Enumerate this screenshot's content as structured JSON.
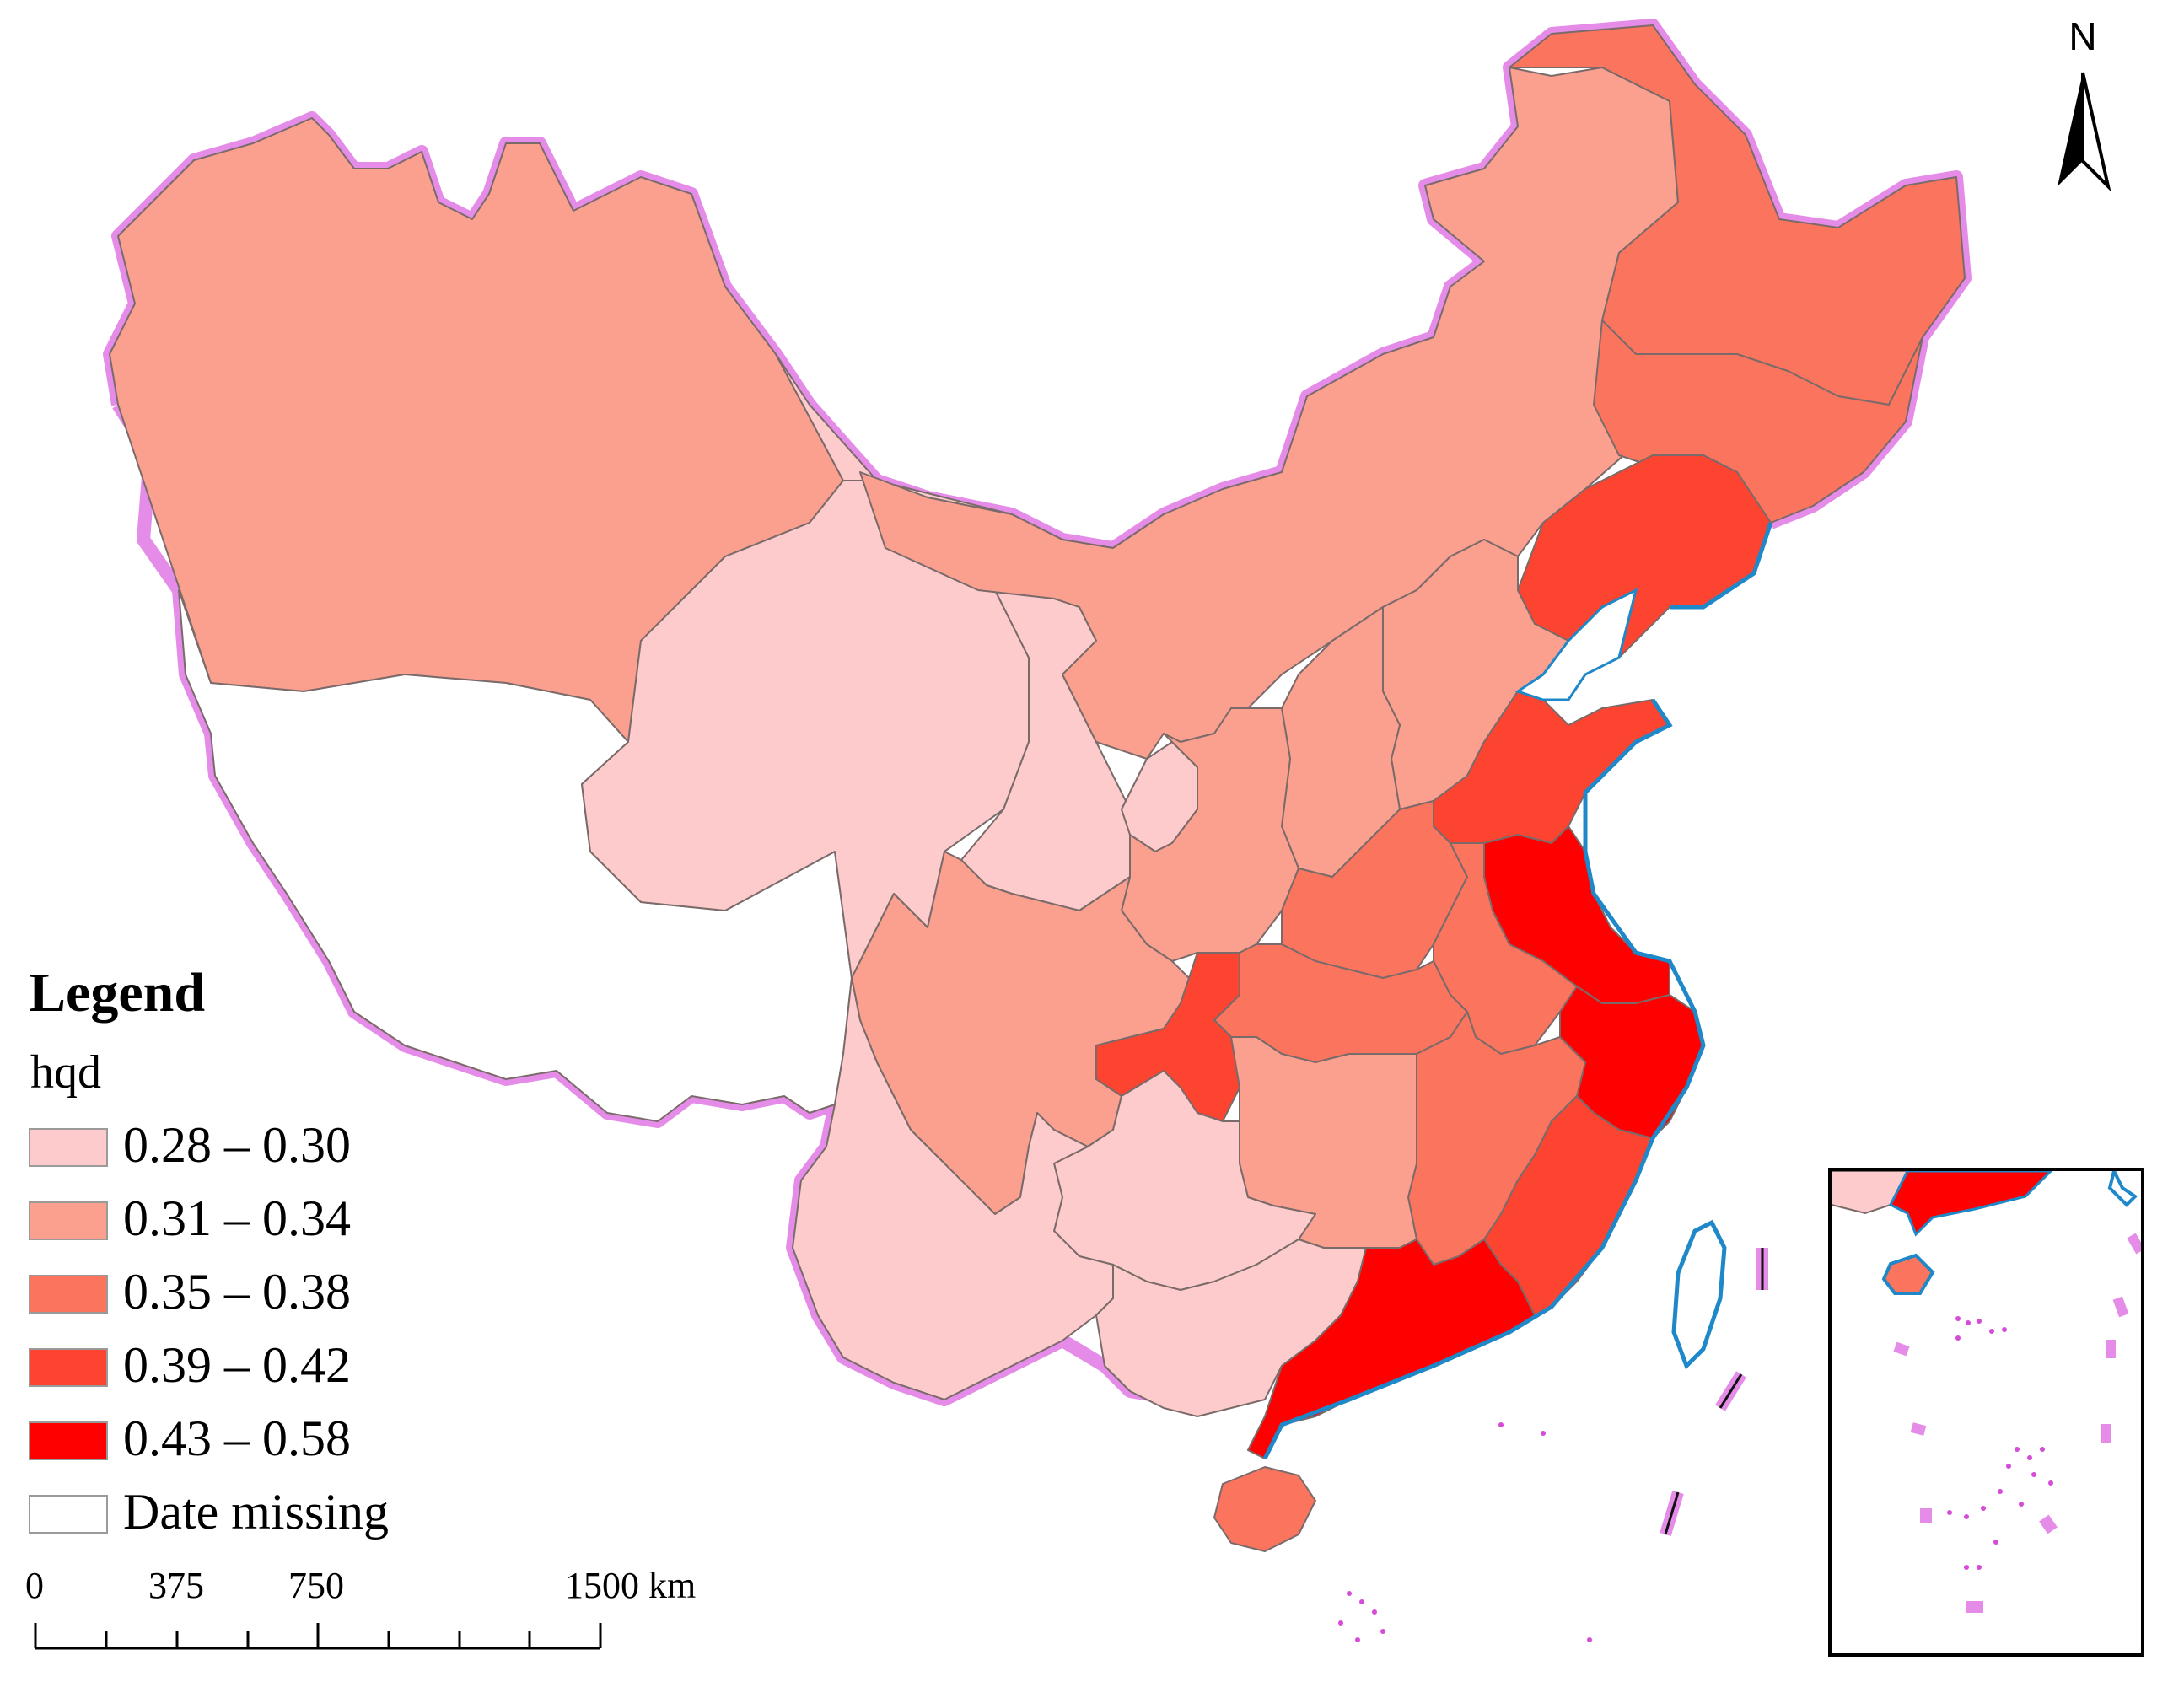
{
  "map": {
    "legend": {
      "title": "Legend",
      "field": "hqd",
      "classes": [
        {
          "label": "0.28 – 0.30",
          "color": "#FDCBCB"
        },
        {
          "label": "0.31 – 0.34",
          "color": "#FBA08F"
        },
        {
          "label": "0.35 – 0.38",
          "color": "#FB745E"
        },
        {
          "label": "0.39 – 0.42",
          "color": "#FC4430"
        },
        {
          "label": "0.43 – 0.58",
          "color": "#FE0000"
        },
        {
          "label": "Date missing",
          "color": "#FFFFFF"
        }
      ]
    },
    "scale_bar": {
      "ticks": [
        "0",
        "375",
        "750",
        "1500 km"
      ]
    },
    "north_arrow": {
      "letter": "N",
      "icon": "north-arrow-icon"
    },
    "regions": [
      {
        "id": "xinjiang",
        "class_index": 1
      },
      {
        "id": "tibet",
        "class_index": 5
      },
      {
        "id": "qinghai",
        "class_index": 0
      },
      {
        "id": "gansu",
        "class_index": 0
      },
      {
        "id": "ningxia",
        "class_index": 0
      },
      {
        "id": "inner-mongolia",
        "class_index": 1
      },
      {
        "id": "heilongjiang",
        "class_index": 2
      },
      {
        "id": "jilin",
        "class_index": 2
      },
      {
        "id": "liaoning",
        "class_index": 3
      },
      {
        "id": "beijing-tianjin",
        "class_index": 4
      },
      {
        "id": "hebei",
        "class_index": 1
      },
      {
        "id": "shanxi",
        "class_index": 1
      },
      {
        "id": "shaanxi",
        "class_index": 1
      },
      {
        "id": "shandong",
        "class_index": 3
      },
      {
        "id": "henan",
        "class_index": 2
      },
      {
        "id": "jiangsu",
        "class_index": 4
      },
      {
        "id": "anhui",
        "class_index": 2
      },
      {
        "id": "hubei",
        "class_index": 2
      },
      {
        "id": "chongqing",
        "class_index": 3
      },
      {
        "id": "sichuan",
        "class_index": 1
      },
      {
        "id": "zhejiang",
        "class_index": 4
      },
      {
        "id": "jiangxi",
        "class_index": 2
      },
      {
        "id": "hunan",
        "class_index": 1
      },
      {
        "id": "fujian",
        "class_index": 3
      },
      {
        "id": "guizhou",
        "class_index": 0
      },
      {
        "id": "yunnan",
        "class_index": 0
      },
      {
        "id": "guangxi",
        "class_index": 0
      },
      {
        "id": "guangdong",
        "class_index": 4
      },
      {
        "id": "hainan",
        "class_index": 2
      }
    ],
    "colors": {
      "border_glow": "#E48CE8",
      "border_line": "#111111",
      "coast": "#1E88C8",
      "islands": "#D64BD8"
    }
  }
}
